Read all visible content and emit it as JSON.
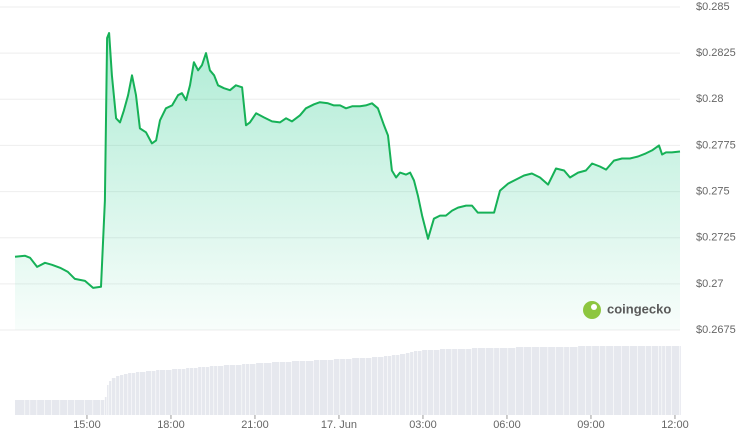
{
  "chart_data": [
    {
      "type": "area",
      "color": "#16b157",
      "grid": true,
      "x": [
        12.43,
        12.79,
        12.97,
        13.22,
        13.5,
        13.75,
        14.04,
        14.32,
        14.57,
        14.93,
        15.22,
        15.5,
        15.64,
        15.72,
        15.79,
        15.89,
        16.04,
        16.18,
        16.32,
        16.47,
        16.61,
        16.75,
        16.89,
        17.11,
        17.32,
        17.47,
        17.61,
        17.82,
        18.04,
        18.25,
        18.39,
        18.54,
        18.68,
        18.82,
        18.97,
        19.11,
        19.25,
        19.39,
        19.54,
        19.68,
        19.89,
        20.11,
        20.32,
        20.54,
        20.68,
        20.82,
        21.04,
        21.32,
        21.61,
        21.89,
        22.11,
        22.32,
        22.61,
        22.82,
        23.11,
        23.32,
        23.61,
        23.82,
        24.04,
        24.25,
        24.47,
        24.75,
        24.96,
        25.18,
        25.39,
        25.61,
        25.75,
        25.89,
        26.04,
        26.18,
        26.39,
        26.54,
        26.68,
        26.82,
        26.97,
        27.18,
        27.39,
        27.61,
        27.82,
        28.04,
        28.25,
        28.54,
        28.75,
        28.96,
        29.25,
        29.54,
        29.75,
        30.04,
        30.32,
        30.61,
        30.89,
        31.18,
        31.47,
        31.75,
        32.04,
        32.25,
        32.54,
        32.82,
        33.04,
        33.32,
        33.54,
        33.82,
        34.11,
        34.39,
        34.68,
        34.96,
        35.18,
        35.43,
        35.54,
        35.68,
        35.89,
        36.18
      ],
      "values": [
        0.27147,
        0.27152,
        0.27141,
        0.27092,
        0.27114,
        0.27103,
        0.27087,
        0.27065,
        0.27027,
        0.27016,
        0.26978,
        0.26984,
        0.27451,
        0.28332,
        0.28359,
        0.2813,
        0.27897,
        0.27875,
        0.2794,
        0.28022,
        0.2813,
        0.28022,
        0.27842,
        0.27821,
        0.27761,
        0.27777,
        0.27886,
        0.27951,
        0.27967,
        0.28022,
        0.28033,
        0.27995,
        0.28076,
        0.28201,
        0.28157,
        0.28185,
        0.2825,
        0.28157,
        0.2813,
        0.28076,
        0.2806,
        0.28049,
        0.28076,
        0.28065,
        0.27859,
        0.27875,
        0.27924,
        0.27902,
        0.2788,
        0.27875,
        0.27897,
        0.2788,
        0.27913,
        0.27951,
        0.27973,
        0.27984,
        0.27978,
        0.27967,
        0.27967,
        0.27951,
        0.27962,
        0.27962,
        0.27967,
        0.27978,
        0.27951,
        0.27859,
        0.27804,
        0.27614,
        0.27576,
        0.27603,
        0.27592,
        0.27603,
        0.2756,
        0.27478,
        0.2737,
        0.27244,
        0.27353,
        0.2737,
        0.2737,
        0.27397,
        0.27413,
        0.27424,
        0.27424,
        0.27386,
        0.27386,
        0.27386,
        0.27505,
        0.27543,
        0.27565,
        0.27587,
        0.27598,
        0.27576,
        0.27538,
        0.27625,
        0.27614,
        0.27576,
        0.27603,
        0.27614,
        0.27652,
        0.27636,
        0.27619,
        0.27668,
        0.27679,
        0.27679,
        0.2769,
        0.27707,
        0.27723,
        0.2775,
        0.27701,
        0.27712,
        0.27712,
        0.27717
      ],
      "xlim": [
        12.43,
        36.18
      ],
      "xticks": [
        {
          "value": 15,
          "label": "15:00"
        },
        {
          "value": 18,
          "label": "18:00"
        },
        {
          "value": 21,
          "label": "21:00"
        },
        {
          "value": 24,
          "label": "17. Jun"
        },
        {
          "value": 27,
          "label": "03:00"
        },
        {
          "value": 30,
          "label": "06:00"
        },
        {
          "value": 33,
          "label": "09:00"
        },
        {
          "value": 36,
          "label": "12:00"
        }
      ],
      "ylim": [
        0.2675,
        0.285
      ],
      "yticks": [
        {
          "value": 0.2675,
          "label": "$0.2675"
        },
        {
          "value": 0.27,
          "label": "$0.27"
        },
        {
          "value": 0.2725,
          "label": "$0.2725"
        },
        {
          "value": 0.275,
          "label": "$0.275"
        },
        {
          "value": 0.2775,
          "label": "$0.2775"
        },
        {
          "value": 0.28,
          "label": "$0.28"
        },
        {
          "value": 0.2825,
          "label": "$0.2825"
        },
        {
          "value": 0.285,
          "label": "$0.285"
        }
      ],
      "watermark": "coingecko"
    },
    {
      "type": "bar",
      "color": "#e6e8ee",
      "x": [
        12.43,
        12.79,
        12.97,
        13.22,
        13.5,
        13.75,
        14.04,
        14.32,
        14.57,
        14.93,
        15.22,
        15.5,
        15.64,
        15.72,
        15.79,
        15.89,
        16.04,
        16.18,
        16.32,
        16.47,
        16.61,
        16.75,
        16.89,
        17.11,
        17.32,
        17.47,
        17.61,
        17.82,
        18.04,
        18.25,
        18.39,
        18.54,
        18.68,
        18.82,
        18.97,
        19.11,
        19.25,
        19.39,
        19.54,
        19.68,
        19.89,
        20.11,
        20.32,
        20.54,
        20.68,
        20.82,
        21.04,
        21.32,
        21.61,
        21.89,
        22.11,
        22.32,
        22.61,
        22.82,
        23.11,
        23.32,
        23.61,
        23.82,
        24.04,
        24.25,
        24.47,
        24.75,
        24.96,
        25.18,
        25.39,
        25.61,
        25.75,
        25.89,
        26.04,
        26.18,
        26.39,
        26.54,
        26.68,
        26.82,
        26.97,
        27.18,
        27.39,
        27.61,
        27.82,
        28.04,
        28.25,
        28.54,
        28.75,
        28.96,
        29.25,
        29.54,
        29.75,
        30.04,
        30.32,
        30.61,
        30.89,
        31.18,
        31.47,
        31.75,
        32.04,
        32.25,
        32.54,
        32.82,
        33.04,
        33.32,
        33.54,
        33.82,
        34.11,
        34.39,
        34.68,
        34.96,
        35.18,
        35.43,
        35.54,
        35.68,
        35.89,
        36.18
      ],
      "values": [
        15,
        15,
        15,
        15,
        15,
        15,
        15,
        15,
        15,
        15,
        15,
        15,
        18,
        30,
        34,
        37,
        39,
        40,
        41,
        42,
        42,
        43,
        43,
        44,
        44,
        45,
        45,
        45,
        46,
        46,
        46,
        47,
        47,
        47,
        48,
        48,
        48,
        49,
        49,
        49,
        50,
        50,
        50,
        51,
        51,
        51,
        52,
        52,
        53,
        53,
        53,
        54,
        54,
        54,
        55,
        55,
        55,
        56,
        56,
        56,
        57,
        57,
        57,
        58,
        58,
        59,
        59,
        60,
        60,
        61,
        62,
        63,
        64,
        64,
        65,
        65,
        65,
        66,
        66,
        66,
        66,
        66,
        67,
        67,
        67,
        67,
        67,
        67,
        68,
        68,
        68,
        68,
        68,
        68,
        68,
        68,
        69,
        69,
        69,
        69,
        69,
        69,
        69,
        69,
        69,
        69,
        69,
        69,
        69,
        69,
        69,
        69
      ],
      "xlim": [
        12.43,
        36.18
      ],
      "ylim": [
        0,
        80
      ]
    }
  ]
}
